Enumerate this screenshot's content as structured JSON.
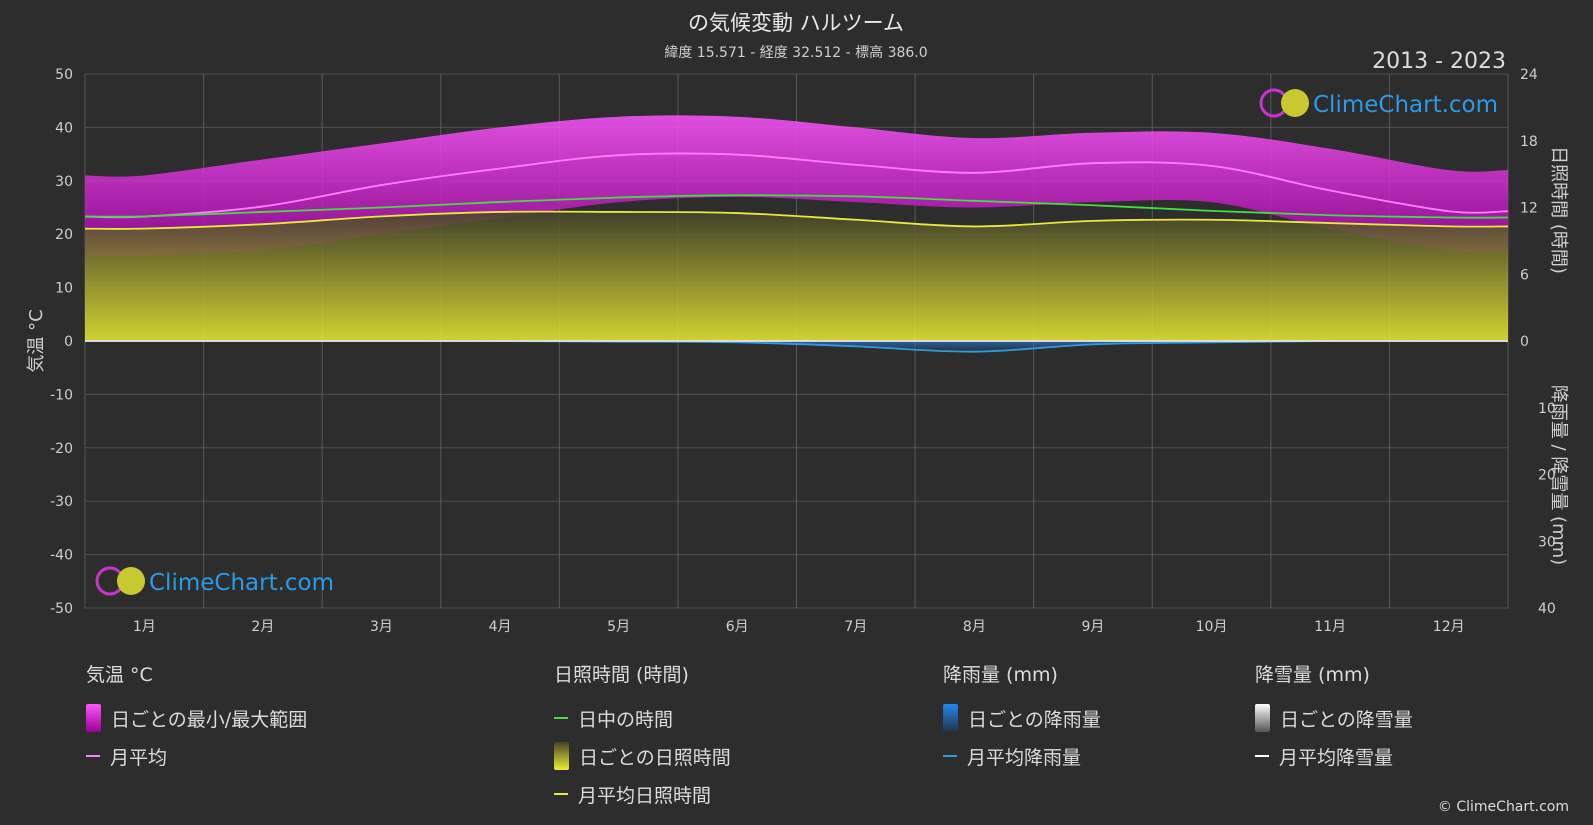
{
  "chart_data": {
    "type": "area",
    "title": "の気候変動 ハルツーム",
    "subtitle": "緯度 15.571 - 経度 32.512 - 標高 386.0",
    "period": "2013 - 2023",
    "watermark": "ClimeChart.com",
    "copyright": "© ClimeChart.com",
    "categories": [
      "1月",
      "2月",
      "3月",
      "4月",
      "5月",
      "6月",
      "7月",
      "8月",
      "9月",
      "10月",
      "11月",
      "12月"
    ],
    "y_left": {
      "label": "気温 °C",
      "range": [
        -50,
        50
      ],
      "ticks": [
        50,
        40,
        30,
        20,
        10,
        0,
        -10,
        -20,
        -30,
        -40,
        -50
      ]
    },
    "y_right_top": {
      "label": "日照時間 (時間)",
      "range": [
        0,
        24
      ],
      "ticks": [
        24,
        18,
        12,
        6,
        0
      ]
    },
    "y_right_bottom": {
      "label": "降雨量 / 降雪量 (mm)",
      "range": [
        0,
        40
      ],
      "ticks": [
        0,
        10,
        20,
        30,
        40
      ]
    },
    "series": [
      {
        "name": "月平均",
        "axis": "temperature",
        "color": "#ff80ff",
        "values": [
          23.3,
          25.2,
          29.2,
          32.3,
          34.8,
          34.9,
          33.0,
          31.5,
          33.3,
          32.8,
          28.2,
          24.3
        ]
      },
      {
        "name": "日中の時間",
        "axis": "sunshine",
        "color": "#44dd44",
        "values": [
          11.2,
          11.6,
          12.0,
          12.5,
          12.9,
          13.1,
          13.0,
          12.6,
          12.2,
          11.7,
          11.3,
          11.1
        ]
      },
      {
        "name": "月平均日照時間",
        "axis": "sunshine",
        "color": "#e8e840",
        "values": [
          10.1,
          10.5,
          11.2,
          11.6,
          11.6,
          11.5,
          10.9,
          10.3,
          10.8,
          10.9,
          10.6,
          10.3
        ]
      },
      {
        "name": "月平均降雨量",
        "axis": "precipitation",
        "color": "#3399dd",
        "values": [
          0.0,
          0.0,
          0.0,
          0.0,
          0.1,
          0.2,
          0.8,
          1.6,
          0.5,
          0.2,
          0.0,
          0.0
        ]
      },
      {
        "name": "月平均降雪量",
        "axis": "precipitation",
        "color": "#ffffff",
        "values": [
          0,
          0,
          0,
          0,
          0,
          0,
          0,
          0,
          0,
          0,
          0,
          0
        ]
      }
    ],
    "range_bands": {
      "temperature_max": [
        31,
        34,
        37,
        40,
        42,
        42,
        40,
        38,
        39,
        39,
        36,
        32
      ],
      "temperature_min": [
        16,
        17,
        20,
        23,
        26,
        27,
        26,
        25,
        26,
        26,
        21,
        17
      ]
    },
    "grid": true
  },
  "legend": {
    "temperature": {
      "title": "気温 °C",
      "items": [
        "日ごとの最小/最大範囲",
        "月平均"
      ]
    },
    "sunshine": {
      "title": "日照時間 (時間)",
      "items": [
        "日中の時間",
        "日ごとの日照時間",
        "月平均日照時間"
      ]
    },
    "rain": {
      "title": "降雨量 (mm)",
      "items": [
        "日ごとの降雨量",
        "月平均降雨量"
      ]
    },
    "snow": {
      "title": "降雪量 (mm)",
      "items": [
        "日ごとの降雪量",
        "月平均降雪量"
      ]
    }
  },
  "colors": {
    "background": "#2d2d2d",
    "temp_band": "#d020d0",
    "temp_line": "#ff80ff",
    "daylight": "#44dd44",
    "sunshine_fill": "#a8a82a",
    "sunshine_line": "#e8e840",
    "rain": "#3399dd",
    "snow": "#ffffff"
  }
}
